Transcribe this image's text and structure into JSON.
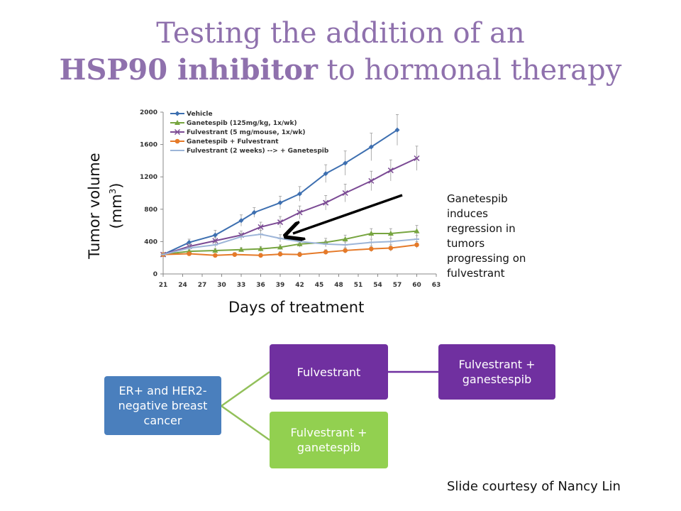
{
  "slide": {
    "title_line1": "Testing the addition of an",
    "title_bold": "HSP90 inhibitor",
    "title_rest": " to hormonal therapy",
    "y_axis_label_1": "Tumor volume",
    "y_axis_label_2": "(mm",
    "y_axis_label_sup": "3",
    "y_axis_label_3": ")",
    "x_axis_label": "Days of treatment",
    "annotation": "Ganetespib induces regression in tumors progressing on fulvestrant",
    "credit": "Slide courtesy of Nancy Lin"
  },
  "flow": {
    "root": "ER+ and HER2-negative breast cancer",
    "branch_top": "Fulvestrant",
    "branch_top_next": "Fulvestrant + ganestespib",
    "branch_bottom": "Fulvestrant + ganetespib",
    "colors": {
      "root": "#4a7fbd",
      "purple": "#7030a0",
      "green": "#92d050",
      "connector_green": "#92c05a",
      "connector_purple": "#7030a0"
    }
  },
  "chart_data": {
    "type": "line",
    "xlim": [
      21,
      63
    ],
    "ylim": [
      0,
      2000
    ],
    "xticks": [
      21,
      24,
      27,
      30,
      33,
      36,
      39,
      42,
      45,
      48,
      51,
      54,
      57,
      60,
      63
    ],
    "yticks": [
      0,
      400,
      800,
      1200,
      1600,
      2000
    ],
    "grid": false,
    "legend_position": "top-left",
    "series": [
      {
        "name": "Vehicle",
        "color": "#3d6fb0",
        "marker": "diamond",
        "x": [
          21,
          25,
          29,
          33,
          35,
          39,
          42,
          46,
          49,
          53,
          57
        ],
        "y": [
          240,
          390,
          480,
          660,
          760,
          880,
          990,
          1240,
          1370,
          1570,
          1780
        ],
        "err": [
          20,
          40,
          60,
          70,
          60,
          80,
          90,
          110,
          150,
          170,
          190
        ]
      },
      {
        "name": "Ganetespib (125mg/kg, 1x/wk)",
        "color": "#77a540",
        "marker": "triangle",
        "x": [
          21,
          25,
          29,
          33,
          36,
          39,
          42,
          46,
          49,
          53,
          56,
          60
        ],
        "y": [
          240,
          280,
          290,
          300,
          310,
          330,
          370,
          390,
          430,
          500,
          500,
          530
        ],
        "err": [
          15,
          20,
          25,
          25,
          30,
          30,
          40,
          50,
          50,
          60,
          60,
          70
        ]
      },
      {
        "name": "Fulvestrant (5 mg/mouse, 1x/wk)",
        "color": "#7b4a94",
        "marker": "x",
        "x": [
          21,
          25,
          29,
          33,
          36,
          39,
          42,
          46,
          49,
          53,
          56,
          60
        ],
        "y": [
          240,
          340,
          410,
          480,
          580,
          640,
          760,
          880,
          1000,
          1150,
          1280,
          1430
        ],
        "err": [
          20,
          30,
          40,
          50,
          60,
          70,
          80,
          90,
          110,
          120,
          130,
          150
        ]
      },
      {
        "name": "Ganetespib + Fulvestrant",
        "color": "#e57a29",
        "marker": "circle",
        "x": [
          21,
          25,
          29,
          32,
          36,
          39,
          42,
          46,
          49,
          53,
          56,
          60
        ],
        "y": [
          240,
          250,
          230,
          240,
          230,
          245,
          240,
          270,
          290,
          310,
          320,
          360
        ],
        "err": [
          15,
          20,
          20,
          25,
          25,
          30,
          30,
          30,
          35,
          35,
          40,
          40
        ]
      },
      {
        "name": "Fulvestrant (2 weeks) --> + Ganetespib",
        "color": "#9db5d8",
        "marker": "dash",
        "x": [
          21,
          25,
          29,
          33,
          36,
          39,
          42,
          46,
          49,
          53,
          56,
          60
        ],
        "y": [
          240,
          320,
          360,
          460,
          490,
          440,
          400,
          370,
          360,
          390,
          400,
          430
        ],
        "err": [
          15,
          25,
          30,
          40,
          50,
          45,
          40,
          35,
          35,
          40,
          40,
          45
        ]
      }
    ]
  }
}
